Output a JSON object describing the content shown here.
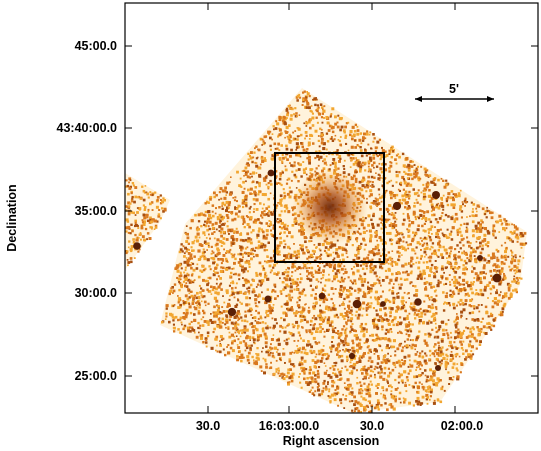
{
  "figure": {
    "xlabel": "Right ascension",
    "ylabel": "Declination",
    "x_ticks": [
      "30.0",
      "16:03:00.0",
      "30.0",
      "02:00.0"
    ],
    "y_ticks": [
      "45:00.0",
      "43:40:00.0",
      "35:00.0",
      "30:00.0",
      "25:00.0"
    ],
    "scale_bar_label": "5'",
    "colors": {
      "pixel_light": "#f2a630",
      "pixel_mid": "#d9781e",
      "pixel_dark": "#a84f10",
      "source": "#5a1f06",
      "frame": "#000000"
    }
  }
}
